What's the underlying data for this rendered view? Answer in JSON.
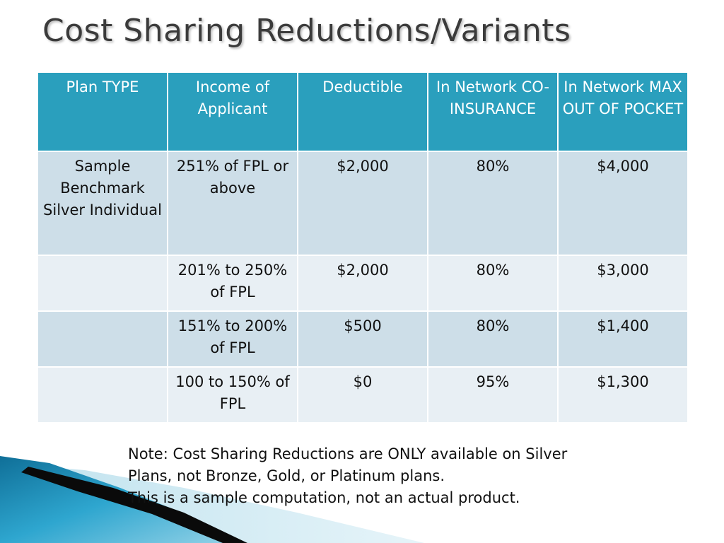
{
  "title": "Cost Sharing Reductions/Variants",
  "table": {
    "headers": [
      "Plan TYPE",
      "Income of Applicant",
      "Deductible",
      "In Network CO-INSURANCE",
      "In Network MAX OUT OF POCKET"
    ],
    "rows": [
      [
        "Sample Benchmark Silver Individual",
        "251% of FPL or above",
        "$2,000",
        "80%",
        "$4,000"
      ],
      [
        "",
        "201% to 250% of FPL",
        "$2,000",
        "80%",
        "$3,000"
      ],
      [
        "",
        "151% to 200% of FPL",
        "$500",
        "80%",
        "$1,400"
      ],
      [
        "",
        "100 to 150% of FPL",
        "$0",
        "95%",
        "$1,300"
      ]
    ]
  },
  "note": {
    "line1": "Note:  Cost Sharing Reductions are ONLY available on Silver",
    "line2": "Plans, not Bronze, Gold, or Platinum plans.",
    "line3": "This is a sample computation, not an actual product."
  },
  "colors": {
    "header_bg": "#2a9fbd",
    "row_dark": "#cddee8",
    "row_light": "#e8eff4",
    "title_text": "#3b3b3b",
    "accent_blue": "#1f8fb8"
  }
}
